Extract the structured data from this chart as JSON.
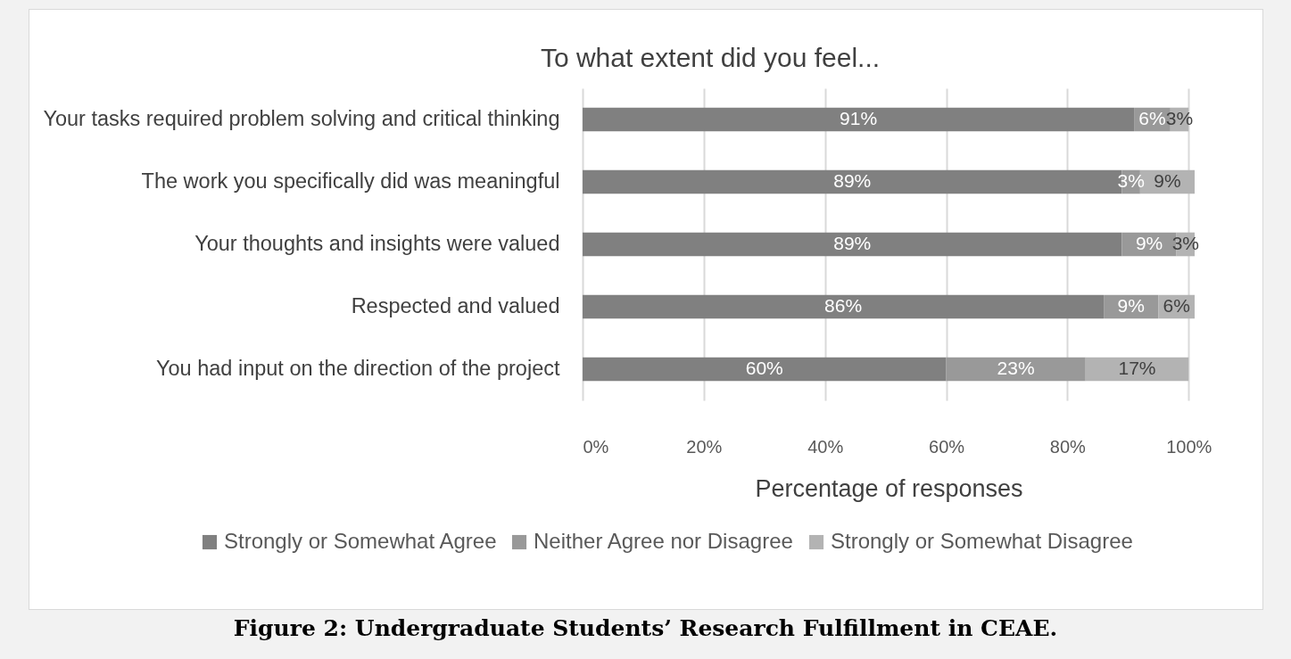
{
  "chart_data": {
    "type": "bar",
    "orientation": "horizontal",
    "stacked": true,
    "title": "To what extent did you feel...",
    "xlabel": "Percentage of responses",
    "categories": [
      "Your tasks required problem solving and critical thinking",
      "The work you specifically did was meaningful",
      "Your thoughts and insights were valued",
      "Respected and valued",
      "You had input on the direction of the project"
    ],
    "series": [
      {
        "name": "Strongly or Somewhat Agree",
        "color": "#808080",
        "values": [
          91,
          89,
          89,
          86,
          60
        ],
        "value_labels": [
          "91%",
          "89%",
          "89%",
          "86%",
          "60%"
        ]
      },
      {
        "name": "Neither Agree nor Disagree",
        "color": "#999999",
        "values": [
          6,
          3,
          9,
          9,
          23
        ],
        "value_labels": [
          "6%",
          "3%",
          "9%",
          "9%",
          "23%"
        ]
      },
      {
        "name": "Strongly or Somewhat Disagree",
        "color": "#b3b3b3",
        "values": [
          3,
          9,
          3,
          6,
          17
        ],
        "value_labels": [
          "3%",
          "9%",
          "3%",
          "6%",
          "17%"
        ]
      }
    ],
    "xlim": [
      0,
      101
    ],
    "xticks": [
      {
        "value": 0,
        "label": "0%"
      },
      {
        "value": 20,
        "label": "20%"
      },
      {
        "value": 40,
        "label": "40%"
      },
      {
        "value": 60,
        "label": "60%"
      },
      {
        "value": 80,
        "label": "80%"
      },
      {
        "value": 100,
        "label": "100%"
      }
    ],
    "grid": "x",
    "legend": "bottom",
    "annotations": [
      "Figure 2: Undergraduate Students’ Research Fulfillment in CEAE."
    ]
  }
}
